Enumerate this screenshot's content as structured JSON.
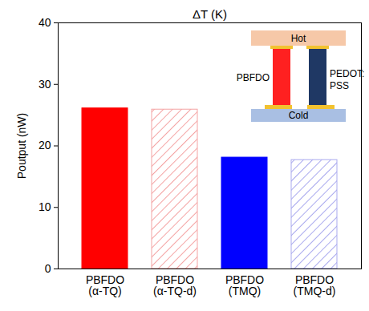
{
  "chart_data": {
    "type": "bar",
    "title": "ΔT (K)",
    "categories": [
      "PBFDO\n(α-TQ)",
      "PBFDO\n(α-TQ-d)",
      "PBFDO\n(TMQ)",
      "PBFDO\n(TMQ-d)"
    ],
    "values": [
      26.1,
      25.9,
      18.1,
      17.7
    ],
    "colors": [
      "#ff0000",
      "#f4a3a3",
      "#0000ff",
      "#a9a9ee"
    ],
    "y_label": "Poutput (nW)",
    "ylim": [
      0,
      40
    ],
    "yticks": [
      0,
      10,
      20,
      30,
      40
    ],
    "grid": false,
    "inset": {
      "hot": "Hot",
      "cold": "Cold",
      "left_leg": "PBFDO",
      "right_leg": [
        "PEDOT:",
        "PSS"
      ]
    }
  }
}
